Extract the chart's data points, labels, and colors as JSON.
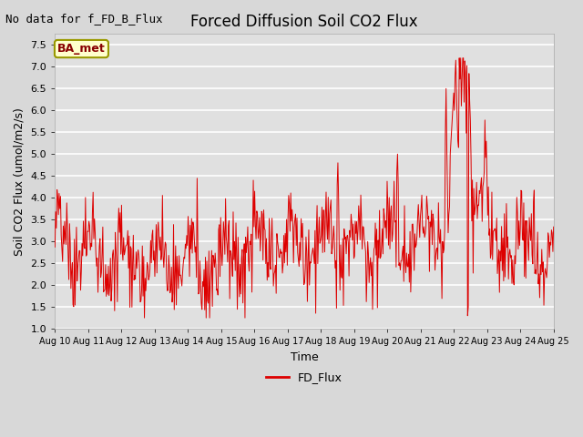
{
  "title": "Forced Diffusion Soil CO2 Flux",
  "xlabel": "Time",
  "ylabel": "Soil CO2 Flux (umol/m2/s)",
  "no_data_text": "No data for f_FD_B_Flux",
  "legend_label": "FD_Flux",
  "legend_label_box": "BA_met",
  "ylim": [
    1.0,
    7.75
  ],
  "yticks": [
    1.0,
    1.5,
    2.0,
    2.5,
    3.0,
    3.5,
    4.0,
    4.5,
    5.0,
    5.5,
    6.0,
    6.5,
    7.0,
    7.5
  ],
  "line_color": "#dd0000",
  "legend_line_color": "#dd0000",
  "bg_color": "#d8d8d8",
  "plot_bg_color": "#e0e0e0",
  "grid_color": "#ffffff",
  "box_fill": "#ffffcc",
  "box_edge": "#999900",
  "box_text_color": "#880000",
  "title_fontsize": 12,
  "axis_label_fontsize": 9,
  "tick_fontsize": 8,
  "no_data_fontsize": 9,
  "xtick_labels": [
    "Aug 10",
    "Aug 11",
    "Aug 12",
    "Aug 13",
    "Aug 14",
    "Aug 15",
    "Aug 16",
    "Aug 17",
    "Aug 18",
    "Aug 19",
    "Aug 20",
    "Aug 21",
    "Aug 22",
    "Aug 23",
    "Aug 24",
    "Aug 25"
  ]
}
